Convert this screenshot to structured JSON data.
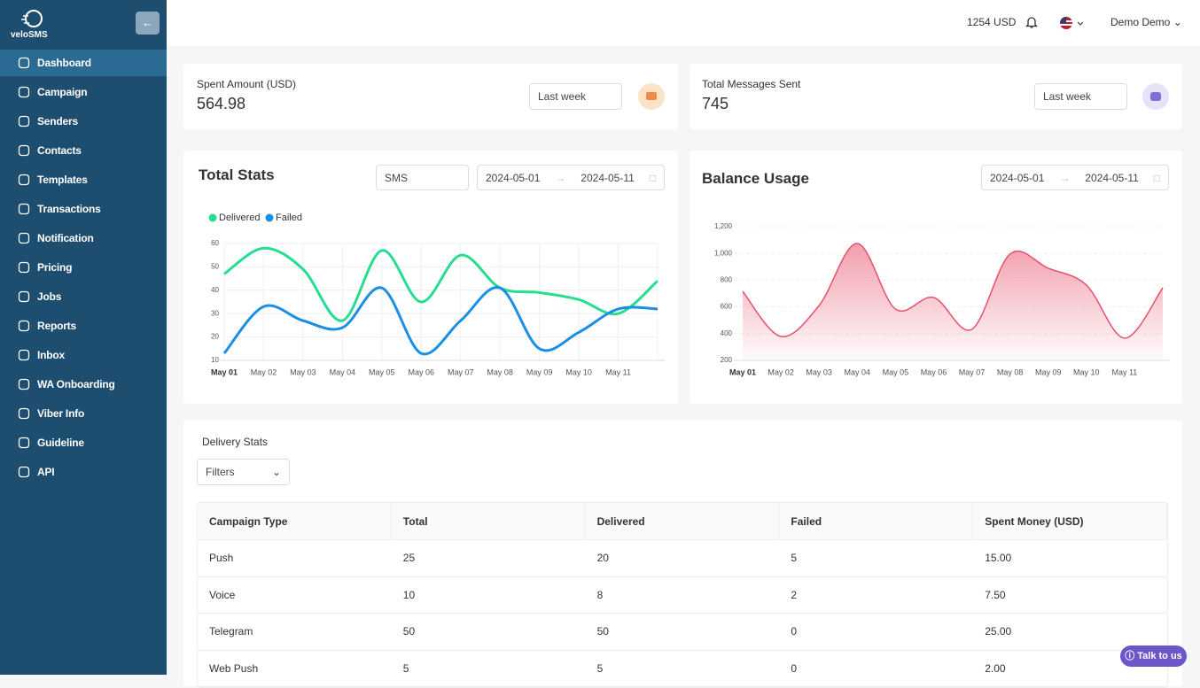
{
  "sidebar": {
    "logo": "veloSMS",
    "items": [
      "Dashboard",
      "Campaign",
      "Senders",
      "Contacts",
      "Templates",
      "Transactions",
      "Notification",
      "Pricing",
      "Jobs",
      "Reports",
      "Inbox",
      "WA Onboarding",
      "Viber Info",
      "Guideline",
      "API"
    ]
  },
  "header": {
    "balance": "1254 USD",
    "user": "Demo Demo"
  },
  "cards": [
    {
      "label": "Spent Amount (USD)",
      "value": "564.98",
      "period": "Last week"
    },
    {
      "label": "Total Messages Sent",
      "value": "745",
      "period": "Last week"
    }
  ],
  "filters": {
    "channel": "SMS",
    "start": "2024-05-01",
    "end": "2024-05-11"
  },
  "chart_data": [
    {
      "type": "line",
      "title": "Total Stats",
      "categories": [
        "May 01",
        "May 02",
        "May 03",
        "May 04",
        "May 05",
        "May 06",
        "May 07",
        "May 08",
        "May 09",
        "May 10",
        "May 11",
        null
      ],
      "series": [
        {
          "name": "Delivered",
          "color": "#27dd8f",
          "values": [
            47,
            58,
            49,
            27,
            57,
            35,
            55,
            41,
            39,
            36,
            30,
            44
          ]
        },
        {
          "name": "Failed",
          "color": "#1a8fe3",
          "values": [
            13,
            33,
            27,
            24,
            41,
            13,
            27,
            41,
            15,
            22,
            32,
            32
          ]
        }
      ],
      "ylim": [
        10,
        60
      ],
      "yticks": [
        10,
        20,
        30,
        40,
        50,
        60
      ],
      "grid": true
    },
    {
      "type": "area",
      "title": "Balance Usage",
      "categories": [
        "May 01",
        "May 02",
        "May 03",
        "May 04",
        "May 05",
        "May 06",
        "May 07",
        "May 08",
        "May 09",
        "May 10",
        "May 11",
        null
      ],
      "series": [
        {
          "name": "Balance",
          "color": "#e8506a",
          "values": [
            716,
            379,
            610,
            1074,
            584,
            670,
            432,
            995,
            889,
            763,
            366,
            743
          ]
        }
      ],
      "ylim": [
        200,
        1200
      ],
      "yticks": [
        200,
        400,
        600,
        800,
        {
          "value": 1000,
          "label": "1,000"
        },
        {
          "value": 1200,
          "label": "1,200"
        }
      ],
      "grid": true
    }
  ],
  "table": {
    "title": "Delivery Stats",
    "filter": "Filters",
    "columns": [
      "Campaign Type",
      "Total",
      "Delivered",
      "Failed",
      "Spent Money (USD)"
    ],
    "rows": [
      [
        "Push",
        25,
        20,
        5,
        "15.00"
      ],
      [
        "Voice",
        10,
        8,
        2,
        "7.50"
      ],
      [
        "Telegram",
        50,
        50,
        0,
        "25.00"
      ],
      [
        "Web Push",
        5,
        5,
        0,
        "2.00"
      ]
    ]
  },
  "chat": "Talk to us"
}
